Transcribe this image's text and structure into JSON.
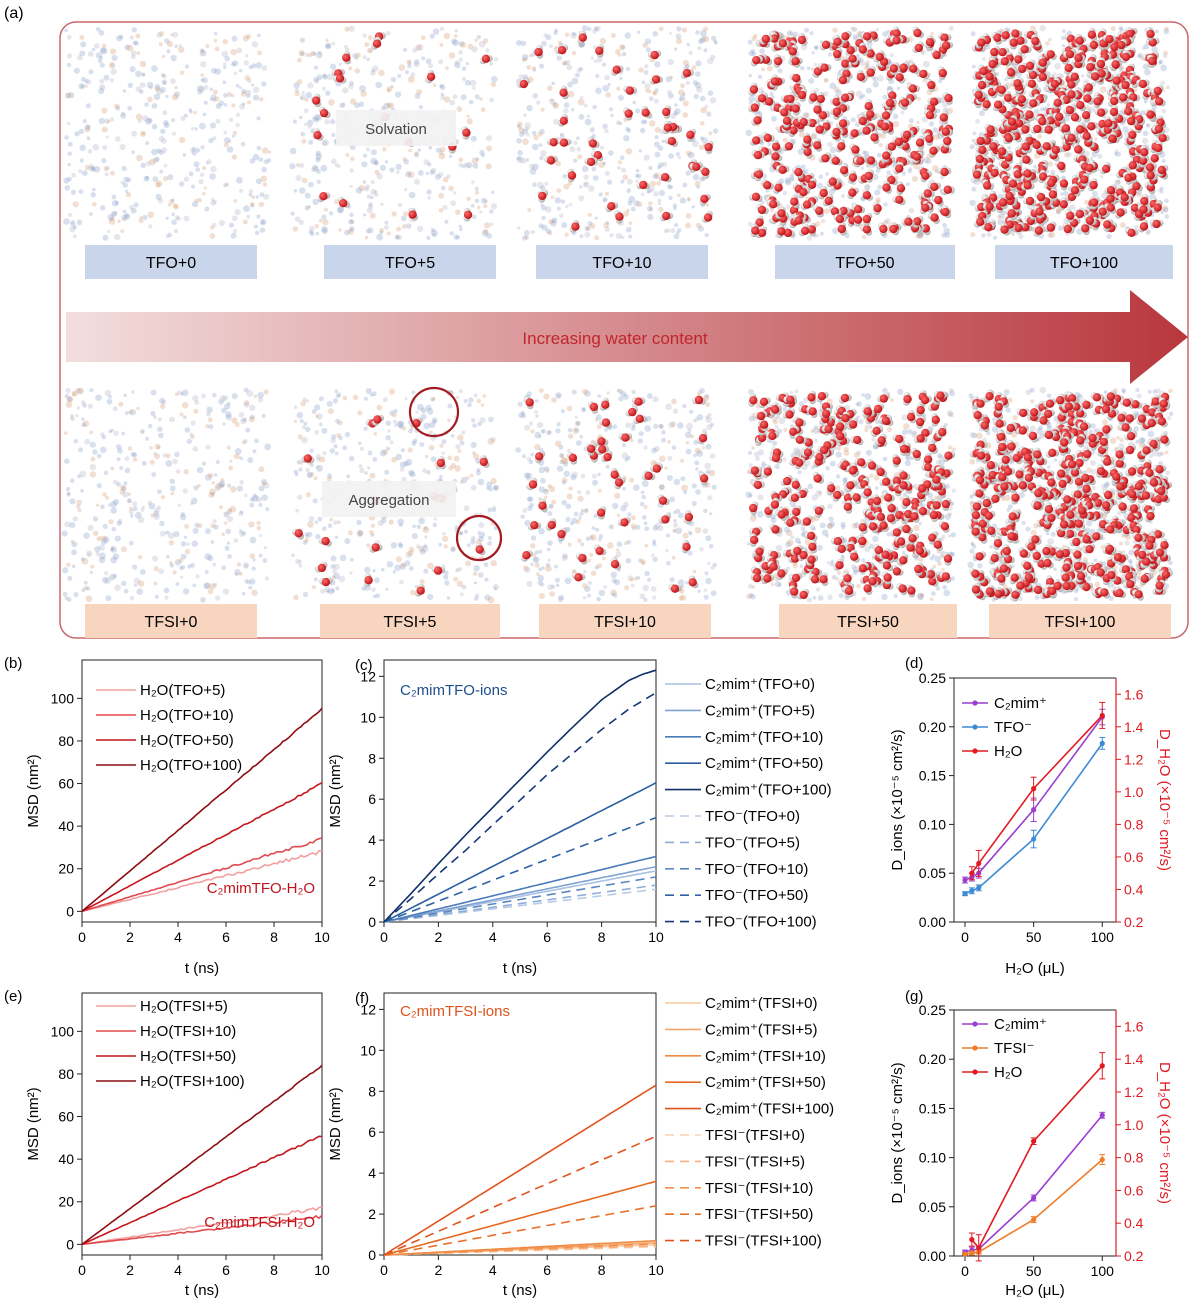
{
  "panel_a": {
    "label": "(a)",
    "arrow_text": "Increasing water content",
    "top_labels": [
      "TFO+0",
      "TFO+5",
      "TFO+10",
      "TFO+50",
      "TFO+100"
    ],
    "bottom_labels": [
      "TFSI+0",
      "TFSI+5",
      "TFSI+10",
      "TFSI+50",
      "TFSI+100"
    ],
    "annotation_top": "Solvation",
    "annotation_bottom": "Aggregation",
    "colors": {
      "border": "#c8686d",
      "top_label_bg": "#c9d5ea",
      "bottom_label_bg": "#f7d5bf",
      "arrow_start": "#f3dede",
      "arrow_end": "#b8373d",
      "arrow_text": "#c0262d",
      "water_o": "#d9171c",
      "water_h": "#d4d4d4"
    }
  },
  "chart_data": [
    {
      "id": "b",
      "panel_label": "(b)",
      "type": "line",
      "title": "",
      "annotation": "C₂mimTFO-H₂O",
      "annotation_color": "#c0141c",
      "xlabel": "t (ns)",
      "ylabel": "MSD (nm²)",
      "xlim": [
        0,
        10
      ],
      "ylim": [
        -5,
        118
      ],
      "xticks": [
        0,
        2,
        4,
        6,
        8,
        10
      ],
      "xtick_labels": [
        "0",
        "2",
        "4",
        "6",
        "8",
        "10"
      ],
      "yticks": [
        0,
        20,
        40,
        60,
        80,
        100
      ],
      "ytick_labels": [
        "0",
        "20",
        "40",
        "60",
        "80",
        "100"
      ],
      "series": [
        {
          "name": "H₂O(TFO+5)",
          "x": [
            0,
            10
          ],
          "y": [
            0,
            28
          ],
          "color": "#f2a0a0",
          "dash": false,
          "noise": 0.7
        },
        {
          "name": "H₂O(TFO+10)",
          "x": [
            0,
            10
          ],
          "y": [
            0,
            34
          ],
          "color": "#e24a4f",
          "dash": false,
          "noise": 0.6
        },
        {
          "name": "H₂O(TFO+50)",
          "x": [
            0,
            10
          ],
          "y": [
            0,
            60
          ],
          "color": "#c4161c",
          "dash": false,
          "noise": 0.4
        },
        {
          "name": "H₂O(TFO+100)",
          "x": [
            0,
            10
          ],
          "y": [
            0,
            95
          ],
          "color": "#8e0d12",
          "dash": false,
          "noise": 0.3
        }
      ]
    },
    {
      "id": "c",
      "panel_label": "(c)",
      "type": "line",
      "title": "",
      "annotation": "C₂mimTFO-ions",
      "annotation_color": "#1f4e8c",
      "xlabel": "t (ns)",
      "ylabel": "MSD (nm²)",
      "xlim": [
        0,
        10
      ],
      "ylim": [
        0,
        12.8
      ],
      "xticks": [
        0,
        2,
        4,
        6,
        8,
        10
      ],
      "xtick_labels": [
        "0",
        "2",
        "4",
        "6",
        "8",
        "10"
      ],
      "yticks": [
        0,
        2,
        4,
        6,
        8,
        10,
        12
      ],
      "ytick_labels": [
        "0",
        "2",
        "4",
        "6",
        "8",
        "10",
        "12"
      ],
      "series": [
        {
          "name": "C₂mim⁺(TFO+0)",
          "x": [
            0,
            10
          ],
          "y": [
            0,
            2.5
          ],
          "color": "#a9c1e2",
          "dash": false,
          "noise": 0.04
        },
        {
          "name": "C₂mim⁺(TFO+5)",
          "x": [
            0,
            10
          ],
          "y": [
            0,
            2.7
          ],
          "color": "#7fa3d2",
          "dash": false,
          "noise": 0.04
        },
        {
          "name": "C₂mim⁺(TFO+10)",
          "x": [
            0,
            10
          ],
          "y": [
            0,
            3.2
          ],
          "color": "#4c7bb9",
          "dash": false,
          "noise": 0.04
        },
        {
          "name": "C₂mim⁺(TFO+50)",
          "x": [
            0,
            10
          ],
          "y": [
            0,
            6.8
          ],
          "color": "#2a5ea1",
          "dash": false,
          "noise": 0.04
        },
        {
          "name": "C₂mim⁺(TFO+100)",
          "x": [
            0,
            1,
            2,
            3,
            4,
            5,
            6,
            7,
            8,
            9,
            9.5,
            10
          ],
          "y": [
            0,
            1.4,
            2.85,
            4.25,
            5.6,
            6.95,
            8.3,
            9.6,
            10.85,
            11.8,
            12.1,
            12.3
          ],
          "color": "#122f68",
          "dash": false,
          "noise": 0.03
        },
        {
          "name": "TFO⁻(TFO+0)",
          "x": [
            0,
            10
          ],
          "y": [
            0,
            1.6
          ],
          "color": "#b7cbe6",
          "dash": true,
          "noise": 0
        },
        {
          "name": "TFO⁻(TFO+5)",
          "x": [
            0,
            10
          ],
          "y": [
            0,
            1.8
          ],
          "color": "#8eaed8",
          "dash": true,
          "noise": 0
        },
        {
          "name": "TFO⁻(TFO+10)",
          "x": [
            0,
            10
          ],
          "y": [
            0,
            2.2
          ],
          "color": "#5a86c0",
          "dash": true,
          "noise": 0
        },
        {
          "name": "TFO⁻(TFO+50)",
          "x": [
            0,
            10
          ],
          "y": [
            0,
            5.1
          ],
          "color": "#2f63a5",
          "dash": true,
          "noise": 0
        },
        {
          "name": "TFO⁻(TFO+100)",
          "x": [
            0,
            1,
            2,
            3,
            4,
            5,
            6,
            7,
            8,
            9,
            10
          ],
          "y": [
            0,
            1.15,
            2.35,
            3.5,
            4.75,
            5.95,
            7.2,
            8.3,
            9.4,
            10.4,
            11.2
          ],
          "color": "#163878",
          "dash": true,
          "noise": 0
        }
      ]
    },
    {
      "id": "d",
      "panel_label": "(d)",
      "type": "line",
      "title": "",
      "xlabel": "H₂O (μL)",
      "ylabel": "D_ions (×10⁻⁵ cm²/s)",
      "ylabel_right": "D_H₂O (×10⁻⁵ cm²/s)",
      "xlim": [
        -8,
        110
      ],
      "ylim": [
        0,
        0.25
      ],
      "ylim_right": [
        0.2,
        1.7
      ],
      "xticks": [
        0,
        50,
        100
      ],
      "xtick_labels": [
        "0",
        "50",
        "100"
      ],
      "yticks": [
        0.0,
        0.05,
        0.1,
        0.15,
        0.2,
        0.25
      ],
      "ytick_labels": [
        "0.00",
        "0.05",
        "0.10",
        "0.15",
        "0.20",
        "0.25"
      ],
      "yticks_right": [
        0.2,
        0.4,
        0.6,
        0.8,
        1.0,
        1.2,
        1.4,
        1.6
      ],
      "ytick_labels_right": [
        "0.2",
        "0.4",
        "0.6",
        "0.8",
        "1.0",
        "1.2",
        "1.4",
        "1.6"
      ],
      "series": [
        {
          "name": "C₂mim⁺",
          "x": [
            0,
            5,
            10,
            50,
            100
          ],
          "y": [
            0.043,
            0.046,
            0.05,
            0.115,
            0.21
          ],
          "err": [
            0.003,
            0.004,
            0.005,
            0.012,
            0.008
          ],
          "color": "#9a3fd1",
          "axis": "left"
        },
        {
          "name": "TFO⁻",
          "x": [
            0,
            5,
            10,
            50,
            100
          ],
          "y": [
            0.029,
            0.032,
            0.035,
            0.085,
            0.183
          ],
          "err": [
            0.002,
            0.003,
            0.003,
            0.009,
            0.006
          ],
          "color": "#3d8bd5",
          "axis": "left"
        },
        {
          "name": "H₂O",
          "x": [
            5,
            10,
            50,
            100
          ],
          "y": [
            0.5,
            0.56,
            1.02,
            1.47
          ],
          "err": [
            0.04,
            0.08,
            0.07,
            0.08
          ],
          "color": "#e01b22",
          "axis": "right"
        }
      ]
    },
    {
      "id": "e",
      "panel_label": "(e)",
      "type": "line",
      "title": "",
      "annotation": "C₂mimTFSI-H₂O",
      "annotation_color": "#c0141c",
      "xlabel": "t (ns)",
      "ylabel": "MSD (nm²)",
      "xlim": [
        0,
        10
      ],
      "ylim": [
        -5,
        118
      ],
      "xticks": [
        0,
        2,
        4,
        6,
        8,
        10
      ],
      "xtick_labels": [
        "0",
        "2",
        "4",
        "6",
        "8",
        "10"
      ],
      "yticks": [
        0,
        20,
        40,
        60,
        80,
        100
      ],
      "ytick_labels": [
        "0",
        "20",
        "40",
        "60",
        "80",
        "100"
      ],
      "series": [
        {
          "name": "H₂O(TFSI+5)",
          "x": [
            0,
            10
          ],
          "y": [
            0,
            17
          ],
          "color": "#f2a0a0",
          "dash": false,
          "noise": 0.7
        },
        {
          "name": "H₂O(TFSI+10)",
          "x": [
            0,
            10
          ],
          "y": [
            0,
            13
          ],
          "color": "#e24a4f",
          "dash": false,
          "noise": 0.6
        },
        {
          "name": "H₂O(TFSI+50)",
          "x": [
            0,
            10
          ],
          "y": [
            0,
            51
          ],
          "color": "#c4161c",
          "dash": false,
          "noise": 0.4
        },
        {
          "name": "H₂O(TFSI+100)",
          "x": [
            0,
            10
          ],
          "y": [
            0,
            84
          ],
          "color": "#8e0d12",
          "dash": false,
          "noise": 0.3
        }
      ]
    },
    {
      "id": "f",
      "panel_label": "(f)",
      "type": "line",
      "title": "",
      "annotation": "C₂mimTFSI-ions",
      "annotation_color": "#e0531c",
      "xlabel": "t (ns)",
      "ylabel": "MSD (nm²)",
      "xlim": [
        0,
        10
      ],
      "ylim": [
        0,
        12.8
      ],
      "xticks": [
        0,
        2,
        4,
        6,
        8,
        10
      ],
      "xtick_labels": [
        "0",
        "2",
        "4",
        "6",
        "8",
        "10"
      ],
      "yticks": [
        0,
        2,
        4,
        6,
        8,
        10,
        12
      ],
      "ytick_labels": [
        "0",
        "2",
        "4",
        "6",
        "8",
        "10",
        "12"
      ],
      "series": [
        {
          "name": "C₂mim⁺(TFSI+0)",
          "x": [
            0,
            10
          ],
          "y": [
            0,
            0.5
          ],
          "color": "#fbc79c",
          "dash": false,
          "noise": 0.02
        },
        {
          "name": "C₂mim⁺(TFSI+5)",
          "x": [
            0,
            10
          ],
          "y": [
            0,
            0.6
          ],
          "color": "#f6a56b",
          "dash": false,
          "noise": 0.02
        },
        {
          "name": "C₂mim⁺(TFSI+10)",
          "x": [
            0,
            10
          ],
          "y": [
            0,
            0.7
          ],
          "color": "#ef8a44",
          "dash": false,
          "noise": 0.02
        },
        {
          "name": "C₂mim⁺(TFSI+50)",
          "x": [
            0,
            10
          ],
          "y": [
            0,
            3.6
          ],
          "color": "#e76a22",
          "dash": false,
          "noise": 0.03
        },
        {
          "name": "C₂mim⁺(TFSI+100)",
          "x": [
            0,
            10
          ],
          "y": [
            0,
            8.3
          ],
          "color": "#e0531c",
          "dash": false,
          "noise": 0.03
        },
        {
          "name": "TFSI⁻(TFSI+0)",
          "x": [
            0,
            10
          ],
          "y": [
            0,
            0.4
          ],
          "color": "#fbd0ad",
          "dash": true,
          "noise": 0
        },
        {
          "name": "TFSI⁻(TFSI+5)",
          "x": [
            0,
            10
          ],
          "y": [
            0,
            0.45
          ],
          "color": "#f7b17f",
          "dash": true,
          "noise": 0
        },
        {
          "name": "TFSI⁻(TFSI+10)",
          "x": [
            0,
            10
          ],
          "y": [
            0,
            0.55
          ],
          "color": "#f0924f",
          "dash": true,
          "noise": 0
        },
        {
          "name": "TFSI⁻(TFSI+50)",
          "x": [
            0,
            10
          ],
          "y": [
            0,
            2.4
          ],
          "color": "#e8712a",
          "dash": true,
          "noise": 0
        },
        {
          "name": "TFSI⁻(TFSI+100)",
          "x": [
            0,
            10
          ],
          "y": [
            0,
            5.8
          ],
          "color": "#e0531c",
          "dash": true,
          "noise": 0
        }
      ]
    },
    {
      "id": "g",
      "panel_label": "(g)",
      "type": "line",
      "title": "",
      "xlabel": "H₂O (μL)",
      "ylabel": "D_ions (×10⁻⁵ cm²/s)",
      "ylabel_right": "D_H₂O (×10⁻⁵ cm²/s)",
      "xlim": [
        -8,
        110
      ],
      "ylim": [
        0,
        0.25
      ],
      "ylim_right": [
        0.2,
        1.7
      ],
      "xticks": [
        0,
        50,
        100
      ],
      "xtick_labels": [
        "0",
        "50",
        "100"
      ],
      "yticks": [
        0.0,
        0.05,
        0.1,
        0.15,
        0.2,
        0.25
      ],
      "ytick_labels": [
        "0.00",
        "0.05",
        "0.10",
        "0.15",
        "0.20",
        "0.25"
      ],
      "yticks_right": [
        0.2,
        0.4,
        0.6,
        0.8,
        1.0,
        1.2,
        1.4,
        1.6
      ],
      "ytick_labels_right": [
        "0.2",
        "0.4",
        "0.6",
        "0.8",
        "1.0",
        "1.2",
        "1.4",
        "1.6"
      ],
      "series": [
        {
          "name": "C₂mim⁺",
          "x": [
            0,
            5,
            10,
            50,
            100
          ],
          "y": [
            0.004,
            0.006,
            0.007,
            0.059,
            0.143
          ],
          "err": [
            0.002,
            0.003,
            0.003,
            0.003,
            0.003
          ],
          "color": "#9a3fd1",
          "axis": "left"
        },
        {
          "name": "TFSI⁻",
          "x": [
            0,
            5,
            10,
            50,
            100
          ],
          "y": [
            0.002,
            0.003,
            0.004,
            0.037,
            0.098
          ],
          "err": [
            0.001,
            0.002,
            0.002,
            0.003,
            0.005
          ],
          "color": "#ee7d2b",
          "axis": "left"
        },
        {
          "name": "H₂O",
          "x": [
            5,
            10,
            50,
            100
          ],
          "y": [
            0.3,
            0.25,
            0.9,
            1.36
          ],
          "err": [
            0.04,
            0.08,
            0.02,
            0.08
          ],
          "color": "#e01b22",
          "axis": "right"
        }
      ]
    }
  ]
}
